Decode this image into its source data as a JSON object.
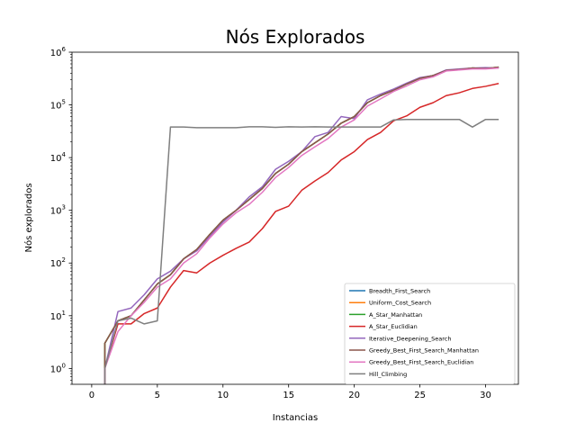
{
  "chart_data": {
    "type": "line",
    "title": "Nós Explorados",
    "xlabel": "Instancias",
    "ylabel": "Nós explorados",
    "xlim": [
      -1.5,
      32.5
    ],
    "ylim": [
      0.5,
      1000000
    ],
    "yscale": "log",
    "grid": false,
    "legend_position": "lower-right",
    "x_ticks": [
      0,
      5,
      10,
      15,
      20,
      25,
      30
    ],
    "y_ticks": [
      {
        "value": 1,
        "base": "10",
        "exp": "0"
      },
      {
        "value": 10,
        "base": "10",
        "exp": "1"
      },
      {
        "value": 100,
        "base": "10",
        "exp": "2"
      },
      {
        "value": 1000,
        "base": "10",
        "exp": "3"
      },
      {
        "value": 10000,
        "base": "10",
        "exp": "4"
      },
      {
        "value": 100000,
        "base": "10",
        "exp": "5"
      },
      {
        "value": 1000000,
        "base": "10",
        "exp": "6"
      }
    ],
    "x": [
      1,
      2,
      3,
      4,
      5,
      6,
      7,
      8,
      9,
      10,
      11,
      12,
      13,
      14,
      15,
      16,
      17,
      18,
      19,
      20,
      21,
      22,
      23,
      24,
      25,
      26,
      27,
      28,
      29,
      30,
      31
    ],
    "series": [
      {
        "name": "Breadth_First_Search",
        "color": "#1f77b4",
        "values": [
          3,
          8,
          10,
          20,
          40,
          60,
          120,
          180,
          350,
          650,
          1000,
          1600,
          2600,
          5000,
          7500,
          13000,
          19000,
          28000,
          45000,
          60000,
          110000,
          150000,
          190000,
          250000,
          320000,
          360000,
          450000,
          470000,
          500000,
          490000,
          520000
        ]
      },
      {
        "name": "Uniform_Cost_Search",
        "color": "#ff7f0e",
        "values": [
          3,
          8,
          10,
          20,
          40,
          60,
          120,
          180,
          350,
          650,
          1000,
          1600,
          2600,
          5000,
          7500,
          13000,
          19000,
          28000,
          45000,
          60000,
          110000,
          150000,
          190000,
          250000,
          320000,
          360000,
          450000,
          470000,
          500000,
          490000,
          520000
        ]
      },
      {
        "name": "A_Star_Manhattan",
        "color": "#2ca02c",
        "values": [
          3,
          8,
          10,
          20,
          40,
          60,
          120,
          180,
          350,
          650,
          1000,
          1600,
          2600,
          5000,
          7500,
          13000,
          19000,
          28000,
          45000,
          60000,
          110000,
          150000,
          190000,
          250000,
          320000,
          360000,
          450000,
          470000,
          500000,
          490000,
          520000
        ]
      },
      {
        "name": "A_Star_Euclidian",
        "color": "#d62728",
        "values": [
          1,
          7,
          7,
          11,
          14,
          35,
          72,
          65,
          100,
          140,
          190,
          250,
          450,
          950,
          1200,
          2400,
          3600,
          5200,
          9000,
          13000,
          22000,
          30000,
          50000,
          62000,
          90000,
          110000,
          150000,
          170000,
          205000,
          225000,
          255000
        ]
      },
      {
        "name": "Iterative_Deepening_Search",
        "color": "#9467bd",
        "values": [
          1,
          12,
          14,
          25,
          50,
          70,
          120,
          170,
          320,
          600,
          1000,
          1800,
          2800,
          6000,
          8500,
          13000,
          25000,
          30000,
          60000,
          55000,
          125000,
          160000,
          200000,
          260000,
          330000,
          360000,
          460000,
          480000,
          500000,
          510000,
          500000
        ]
      },
      {
        "name": "Greedy_Best_First_Search_Manhattan",
        "color": "#8c564b",
        "values": [
          3,
          8,
          10,
          20,
          40,
          60,
          120,
          180,
          350,
          650,
          1000,
          1600,
          2600,
          5000,
          7500,
          13000,
          19000,
          28000,
          45000,
          60000,
          110000,
          150000,
          190000,
          250000,
          320000,
          360000,
          450000,
          470000,
          500000,
          490000,
          520000
        ]
      },
      {
        "name": "Greedy_Best_First_Search_Euclidian",
        "color": "#e377c2",
        "values": [
          1,
          5,
          10,
          18,
          35,
          50,
          100,
          150,
          300,
          550,
          900,
          1300,
          2200,
          4200,
          6500,
          11000,
          16000,
          23000,
          38000,
          52000,
          95000,
          130000,
          180000,
          230000,
          300000,
          340000,
          440000,
          460000,
          480000,
          480000,
          500000
        ]
      },
      {
        "name": "Hill_Climbing",
        "color": "#7f7f7f",
        "values": [
          1,
          8,
          9,
          7,
          8,
          38000,
          38000,
          37000,
          37000,
          37000,
          37000,
          38500,
          38500,
          37500,
          38500,
          38000,
          38500,
          38000,
          38000,
          38000,
          38000,
          38000,
          52000,
          53000,
          53000,
          53000,
          53000,
          53000,
          38000,
          53000,
          53000
        ]
      }
    ]
  }
}
